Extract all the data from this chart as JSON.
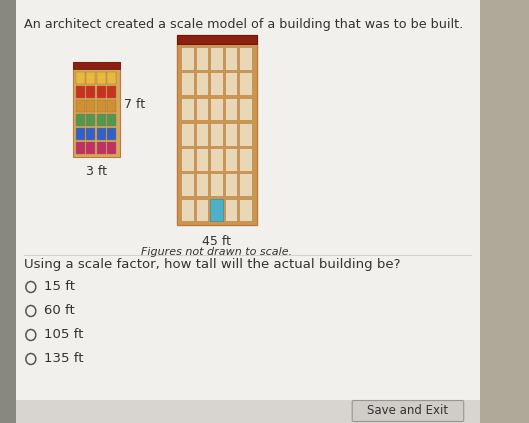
{
  "title": "An architect created a scale model of a building that was to be built.",
  "subtitle": "Figures not drawn to scale.",
  "question": "Using a scale factor, how tall will the actual building be?",
  "choices": [
    "15 ft",
    "60 ft",
    "105 ft",
    "135 ft"
  ],
  "small_building_width_label": "3 ft",
  "small_building_height_label": "7 ft",
  "large_building_height_label": "45 ft",
  "bg_left_color": "#b0a898",
  "bg_main_color": "#e8e4de",
  "panel_color": "#f2f0ec",
  "button_color": "#d0ccc8",
  "button_text": "Save and Exit",
  "text_color": "#333333",
  "wall_color": "#d4a860",
  "roof_color": "#8b2010",
  "small_row_colors": [
    "#e8b840",
    "#c83020",
    "#d09030",
    "#509850",
    "#3060c8",
    "#c03068",
    "#d06020"
  ],
  "large_window_color": "#e8d8b8",
  "large_wall_color": "#c89850",
  "large_outline_color": "#c07840",
  "door_color": "#50b0c8"
}
